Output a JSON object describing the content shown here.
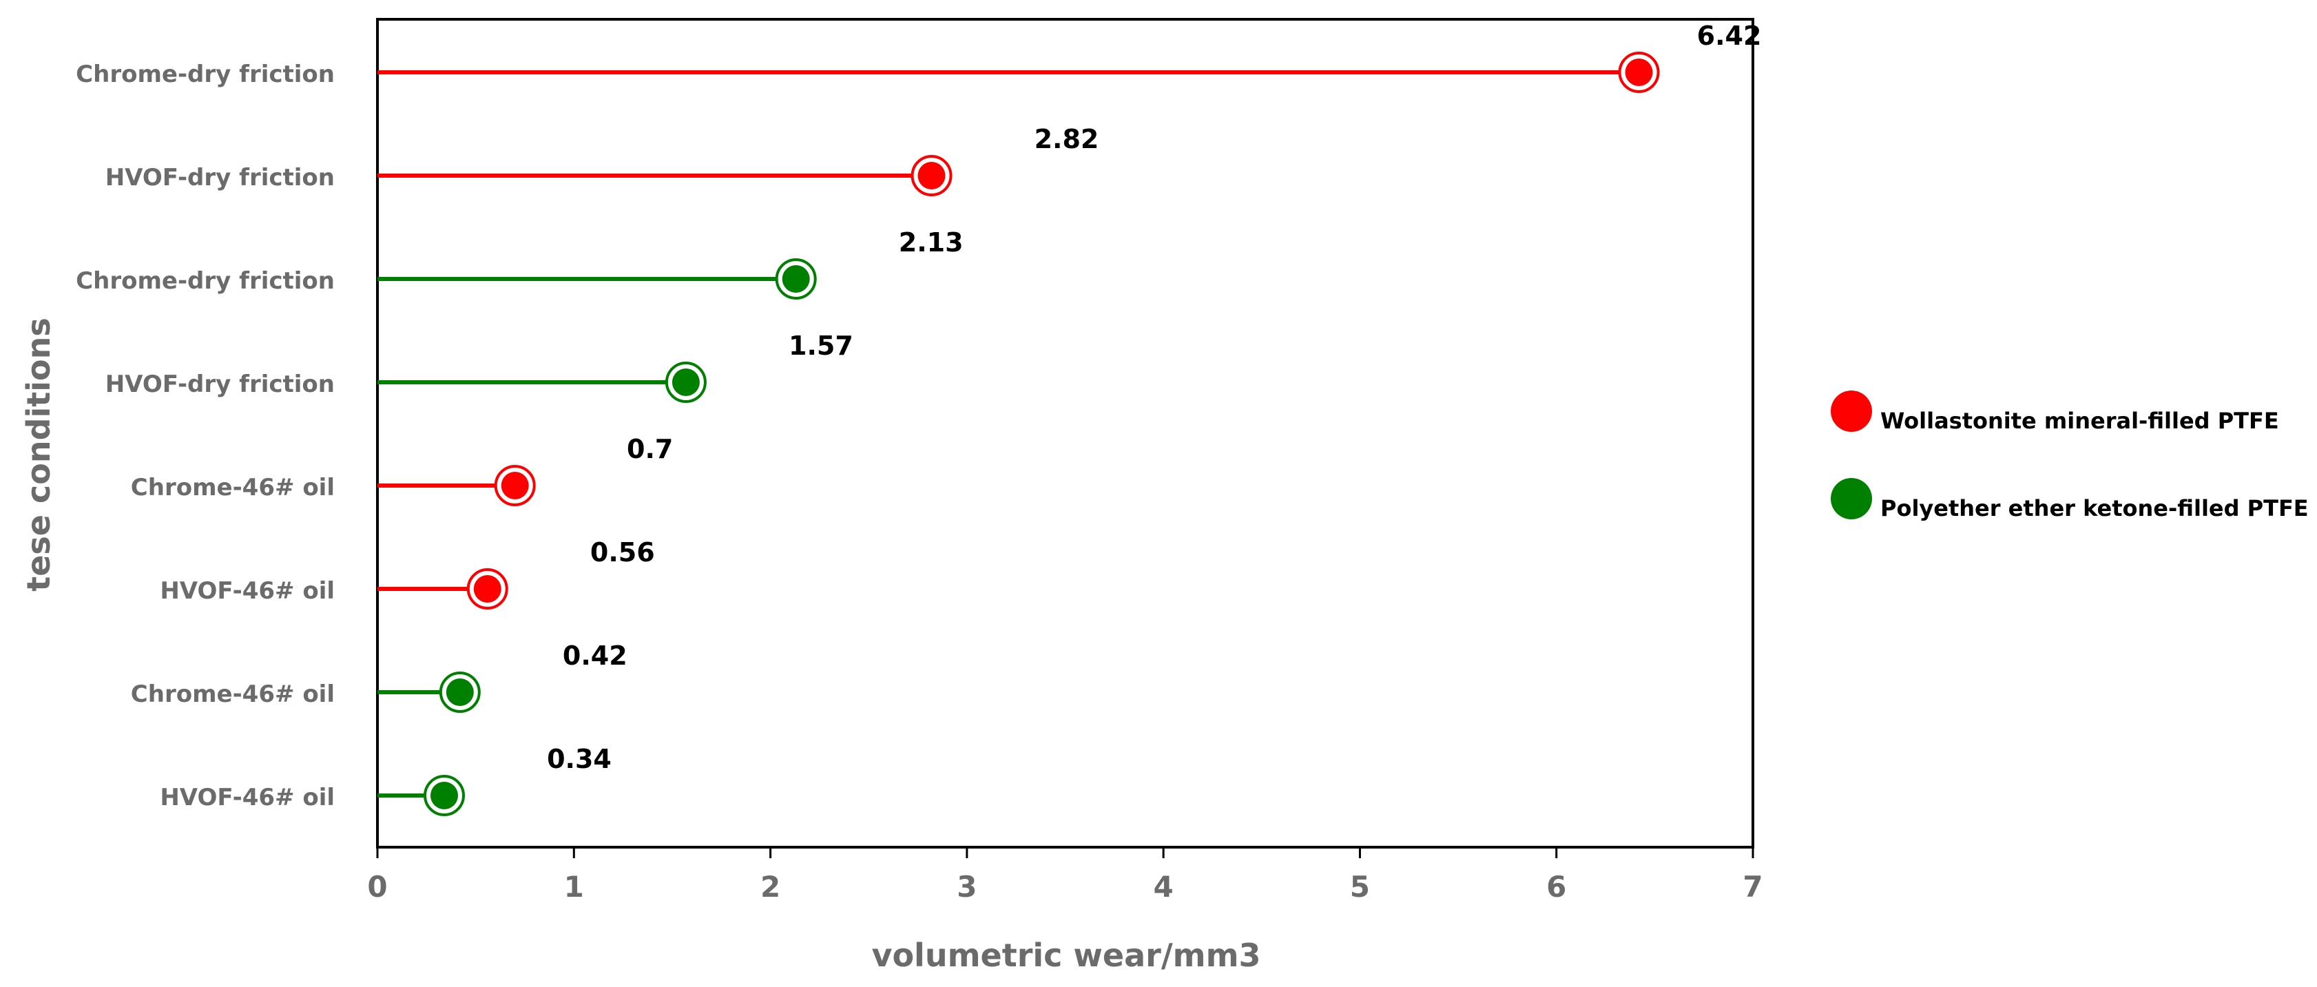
{
  "chart_data": {
    "type": "lollipop",
    "xlabel": "volumetric wear/mm3",
    "ylabel": "tese conditions",
    "xlim": [
      0,
      7
    ],
    "xticks": [
      "0",
      "1",
      "2",
      "3",
      "4",
      "5",
      "6",
      "7"
    ],
    "grid": false,
    "legend_position": "right",
    "categories": [
      "Chrome-dry friction",
      "HVOF-dry friction",
      "Chrome-dry friction",
      "HVOF-dry friction",
      "Chrome-46# oil",
      "HVOF-46# oil",
      "Chrome-46# oil",
      "HVOF-46# oil"
    ],
    "values": [
      6.42,
      2.82,
      2.13,
      1.57,
      0.7,
      0.56,
      0.42,
      0.34
    ],
    "value_labels": [
      "6.42",
      "2.82",
      "2.13",
      "1.57",
      "0.7",
      "0.56",
      "0.42",
      "0.34"
    ],
    "series_index": [
      0,
      0,
      1,
      1,
      0,
      0,
      1,
      1
    ],
    "series": [
      {
        "name": "Wollastonite mineral-filled PTFE",
        "color": "#ff0000"
      },
      {
        "name": "Polyether ether ketone-filled PTFE",
        "color": "#008000"
      }
    ]
  }
}
